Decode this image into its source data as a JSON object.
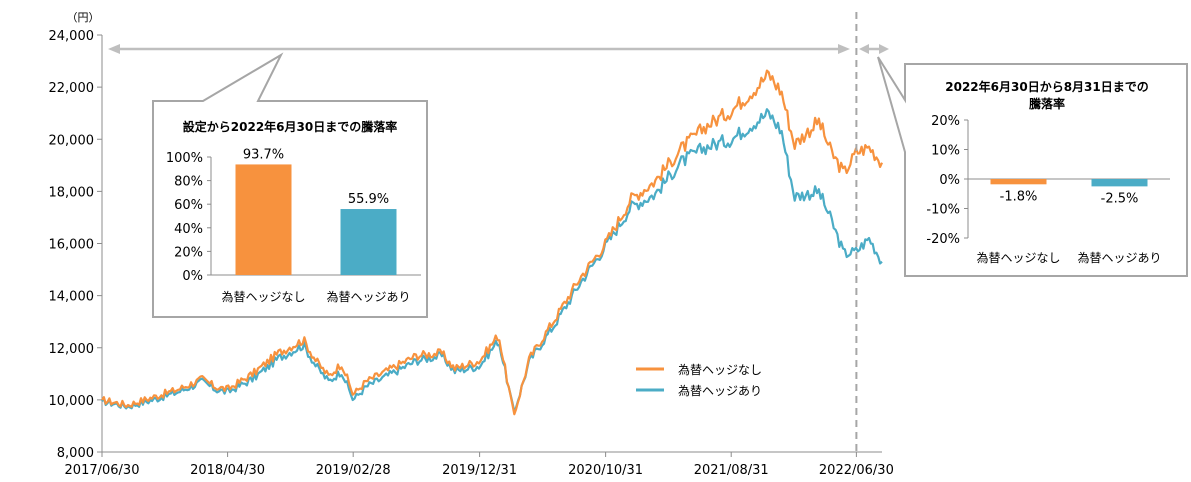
{
  "chart_data": [
    {
      "type": "line",
      "yunit": "（円）",
      "ylim": [
        8000,
        24000
      ],
      "yticks": [
        "24,000",
        "22,000",
        "20,000",
        "18,000",
        "16,000",
        "14,000",
        "12,000",
        "10,000",
        "8,000"
      ],
      "xticks": [
        "2017/06/30",
        "2018/04/30",
        "2019/02/28",
        "2019/12/31",
        "2020/10/31",
        "2021/08/31",
        "2022/06/30"
      ],
      "x_end": "2022/08/31",
      "grid": false,
      "legend_position": "bottom-right",
      "series": [
        {
          "name": "為替ヘッジなし",
          "color": "#f7923e",
          "points": [
            [
              "2017-06-30",
              10000
            ],
            [
              "2017-08-31",
              9800
            ],
            [
              "2017-10-31",
              10100
            ],
            [
              "2017-12-31",
              10400
            ],
            [
              "2018-02-28",
              10800
            ],
            [
              "2018-03-31",
              10500
            ],
            [
              "2018-04-30",
              10400
            ],
            [
              "2018-06-30",
              11000
            ],
            [
              "2018-08-31",
              11800
            ],
            [
              "2018-10-31",
              12300
            ],
            [
              "2018-11-30",
              11500
            ],
            [
              "2018-12-31",
              10900
            ],
            [
              "2019-01-31",
              11400
            ],
            [
              "2019-02-28",
              10200
            ],
            [
              "2019-03-31",
              10700
            ],
            [
              "2019-05-31",
              11200
            ],
            [
              "2019-07-31",
              11700
            ],
            [
              "2019-09-30",
              11800
            ],
            [
              "2019-10-31",
              11200
            ],
            [
              "2019-12-31",
              11500
            ],
            [
              "2020-02-15",
              12500
            ],
            [
              "2020-03-23",
              9400
            ],
            [
              "2020-04-30",
              11600
            ],
            [
              "2020-06-30",
              13100
            ],
            [
              "2020-08-31",
              14700
            ],
            [
              "2020-10-31",
              16000
            ],
            [
              "2020-12-31",
              17700
            ],
            [
              "2021-02-28",
              18400
            ],
            [
              "2021-04-30",
              19600
            ],
            [
              "2021-06-30",
              20500
            ],
            [
              "2021-08-31",
              21100
            ],
            [
              "2021-10-31",
              22000
            ],
            [
              "2021-11-30",
              22500
            ],
            [
              "2021-12-31",
              21800
            ],
            [
              "2022-01-31",
              19800
            ],
            [
              "2022-03-31",
              20700
            ],
            [
              "2022-04-30",
              19500
            ],
            [
              "2022-05-31",
              18700
            ],
            [
              "2022-06-30",
              19500
            ],
            [
              "2022-07-31",
              19700
            ],
            [
              "2022-08-31",
              19100
            ]
          ]
        },
        {
          "name": "為替ヘッジあり",
          "color": "#4bacc6",
          "points": [
            [
              "2017-06-30",
              9950
            ],
            [
              "2017-08-31",
              9750
            ],
            [
              "2017-10-31",
              10000
            ],
            [
              "2017-12-31",
              10300
            ],
            [
              "2018-02-28",
              10700
            ],
            [
              "2018-03-31",
              10400
            ],
            [
              "2018-04-30",
              10300
            ],
            [
              "2018-06-30",
              10800
            ],
            [
              "2018-08-31",
              11600
            ],
            [
              "2018-10-31",
              12100
            ],
            [
              "2018-11-30",
              11300
            ],
            [
              "2018-12-31",
              10700
            ],
            [
              "2019-01-31",
              11100
            ],
            [
              "2019-02-28",
              10000
            ],
            [
              "2019-03-31",
              10500
            ],
            [
              "2019-05-31",
              11000
            ],
            [
              "2019-07-31",
              11500
            ],
            [
              "2019-09-30",
              11700
            ],
            [
              "2019-10-31",
              11100
            ],
            [
              "2019-12-31",
              11300
            ],
            [
              "2020-02-15",
              12300
            ],
            [
              "2020-03-23",
              9500
            ],
            [
              "2020-04-30",
              11500
            ],
            [
              "2020-06-30",
              12900
            ],
            [
              "2020-08-31",
              14500
            ],
            [
              "2020-10-31",
              15900
            ],
            [
              "2020-12-31",
              17400
            ],
            [
              "2021-02-28",
              17900
            ],
            [
              "2021-04-30",
              19100
            ],
            [
              "2021-06-30",
              19700
            ],
            [
              "2021-08-31",
              20000
            ],
            [
              "2021-10-31",
              20700
            ],
            [
              "2021-11-30",
              21000
            ],
            [
              "2021-12-31",
              20300
            ],
            [
              "2022-01-31",
              17800
            ],
            [
              "2022-03-31",
              18000
            ],
            [
              "2022-04-30",
              16900
            ],
            [
              "2022-05-31",
              15600
            ],
            [
              "2022-06-30",
              15700
            ],
            [
              "2022-07-31",
              16200
            ],
            [
              "2022-08-31",
              15300
            ]
          ]
        }
      ]
    },
    {
      "type": "bar",
      "title": "設定から2022年6月30日までの騰落率",
      "categories": [
        "為替ヘッジなし",
        "為替ヘッジあり"
      ],
      "values": [
        93.7,
        55.9
      ],
      "value_labels": [
        "93.7%",
        "55.9%"
      ],
      "colors": [
        "#f7923e",
        "#4bacc6"
      ],
      "ylim": [
        0,
        100
      ],
      "yticks": [
        "100%",
        "80%",
        "60%",
        "40%",
        "20%",
        "0%"
      ]
    },
    {
      "type": "bar",
      "title": "2022年6月30日から8月31日までの騰落率",
      "categories": [
        "為替ヘッジなし",
        "為替ヘッジあり"
      ],
      "values": [
        -1.8,
        -2.5
      ],
      "value_labels": [
        "-1.8%",
        "-2.5%"
      ],
      "colors": [
        "#f7923e",
        "#4bacc6"
      ],
      "ylim": [
        -20,
        20
      ],
      "yticks": [
        "20%",
        "10%",
        "0%",
        "-10%",
        "-20%"
      ]
    }
  ]
}
